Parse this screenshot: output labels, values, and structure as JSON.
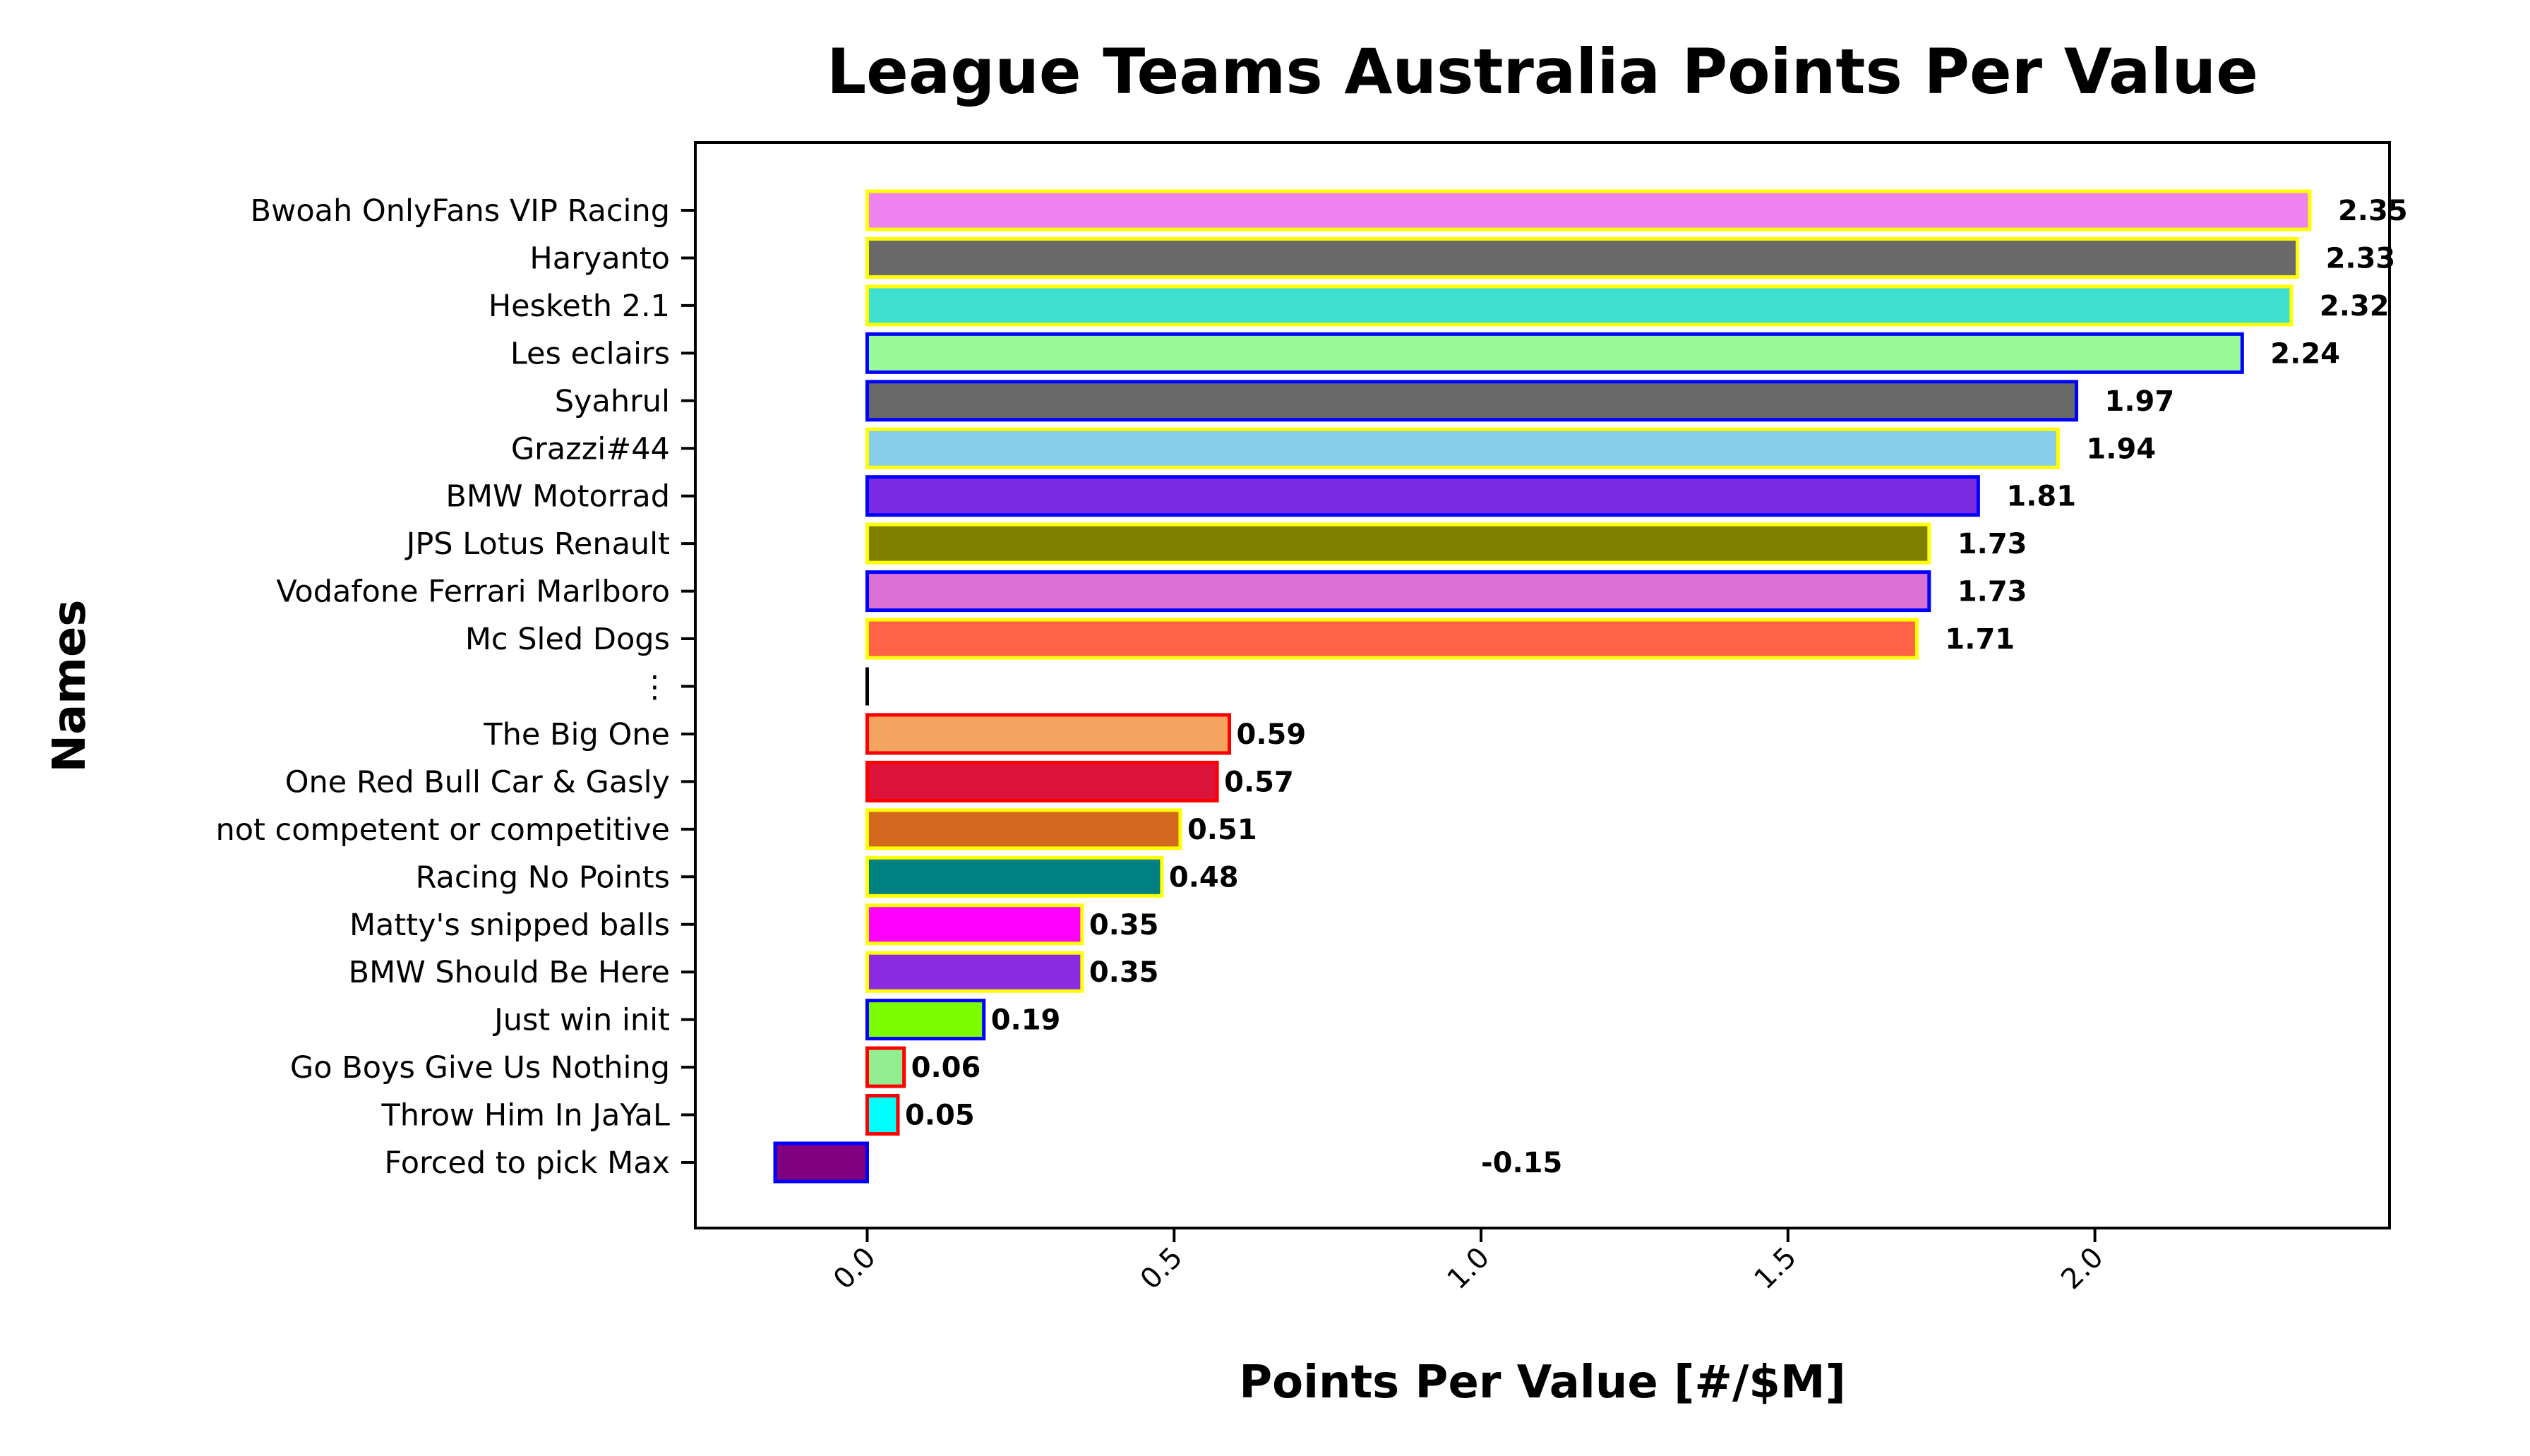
{
  "chart_data": {
    "type": "bar",
    "orientation": "horizontal",
    "title": "League Teams Australia Points Per Value",
    "xlabel": "Points Per Value [#/$M]",
    "ylabel": "Names",
    "xlim": [
      -0.28,
      2.48
    ],
    "xticks": [
      0.0,
      0.5,
      1.0,
      1.5,
      2.0
    ],
    "xtick_labels": [
      "0.0",
      "0.5",
      "1.0",
      "1.5",
      "2.0"
    ],
    "grid": false,
    "legend": "none",
    "categories": [
      "Bwoah OnlyFans VIP Racing",
      "Haryanto",
      "Hesketh 2.1",
      "Les eclairs",
      "Syahrul",
      "Grazzi#44",
      "BMW Motorrad",
      "JPS Lotus Renault",
      "Vodafone Ferrari Marlboro",
      "Mc Sled Dogs",
      "⋮",
      "The Big One",
      "One Red Bull Car & Gasly",
      "not competent or competitive",
      "Racing No Points",
      "Matty's snipped balls",
      "BMW Should Be Here",
      "Just win init",
      "Go Boys Give Us Nothing",
      "Throw Him In JaYaL",
      "Forced to pick Max"
    ],
    "values": [
      2.35,
      2.33,
      2.32,
      2.24,
      1.97,
      1.94,
      1.81,
      1.73,
      1.73,
      1.71,
      0,
      0.59,
      0.57,
      0.51,
      0.48,
      0.35,
      0.35,
      0.19,
      0.06,
      0.05,
      -0.15
    ],
    "value_labels": [
      "2.35",
      "2.33",
      "2.32",
      "2.24",
      "1.97",
      "1.94",
      "1.81",
      "1.73",
      "1.73",
      "1.71",
      "",
      "0.59",
      "0.57",
      "0.51",
      "0.48",
      "0.35",
      "0.35",
      "0.19",
      "0.06",
      "0.05",
      "-0.15"
    ],
    "fill_colors": [
      "#ee82ee",
      "#696969",
      "#40e0d0",
      "#98fb98",
      "#696969",
      "#87ceeb",
      "#7b2be2",
      "#808000",
      "#da70d6",
      "#ff6347",
      "#000000",
      "#f4a460",
      "#dc143c",
      "#d2691e",
      "#008080",
      "#ff00ff",
      "#8a2be2",
      "#7cfc00",
      "#90ee90",
      "#00ffff",
      "#800080"
    ],
    "edge_colors": [
      "#ffff00",
      "#ffff00",
      "#ffff00",
      "#0000ff",
      "#0000ff",
      "#ffff00",
      "#0000ff",
      "#ffff00",
      "#0000ff",
      "#ffff00",
      "#000000",
      "#ff0000",
      "#ff0000",
      "#ffff00",
      "#ffff00",
      "#ffff00",
      "#ffff00",
      "#0000ff",
      "#ff0000",
      "#ff0000",
      "#0000ff"
    ]
  }
}
